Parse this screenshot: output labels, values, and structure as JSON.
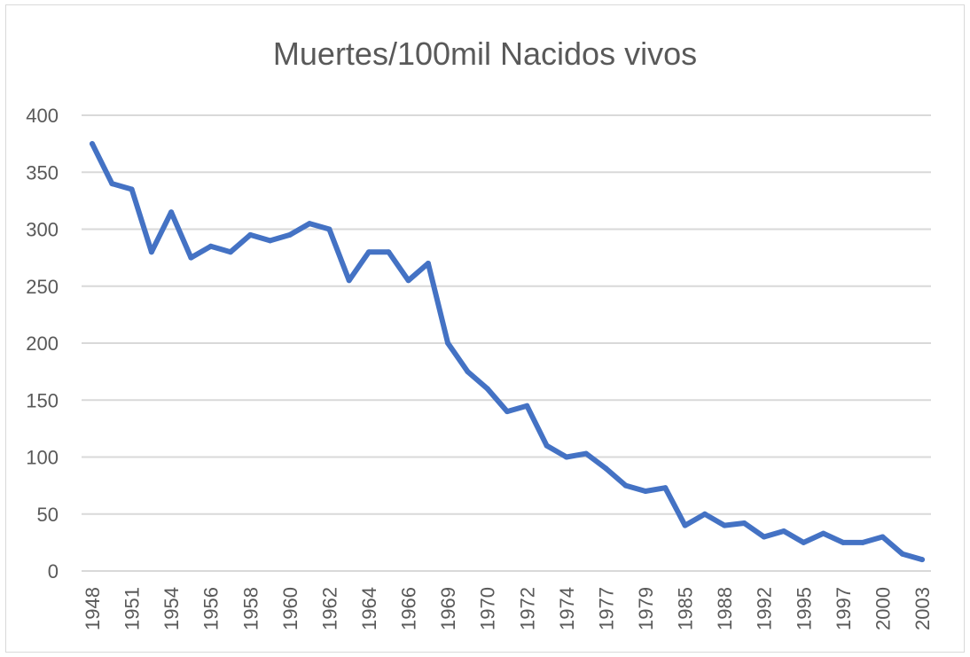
{
  "chart_data": {
    "type": "line",
    "title": "Muertes/100mil Nacidos vivos",
    "xlabel": "",
    "ylabel": "",
    "ylim": [
      0,
      400
    ],
    "yticks": [
      0,
      50,
      100,
      150,
      200,
      250,
      300,
      350,
      400
    ],
    "x_tick_labels": [
      "1948",
      "1951",
      "1954",
      "1956",
      "1958",
      "1960",
      "1962",
      "1964",
      "1966",
      "1969",
      "1970",
      "1972",
      "1974",
      "1977",
      "1979",
      "1985",
      "1988",
      "1992",
      "1995",
      "1997",
      "2000",
      "2003"
    ],
    "grid": true,
    "legend": "none",
    "line_color": "#4472c4",
    "series": [
      {
        "values": [
          375,
          340,
          335,
          280,
          315,
          275,
          285,
          280,
          295,
          290,
          295,
          305,
          300,
          255,
          280,
          280,
          255,
          270,
          200,
          175,
          160,
          140,
          145,
          110,
          100,
          103,
          90,
          75,
          70,
          73,
          40,
          50,
          40,
          42,
          30,
          35,
          25,
          33,
          25,
          25,
          30,
          15,
          10
        ]
      }
    ]
  }
}
